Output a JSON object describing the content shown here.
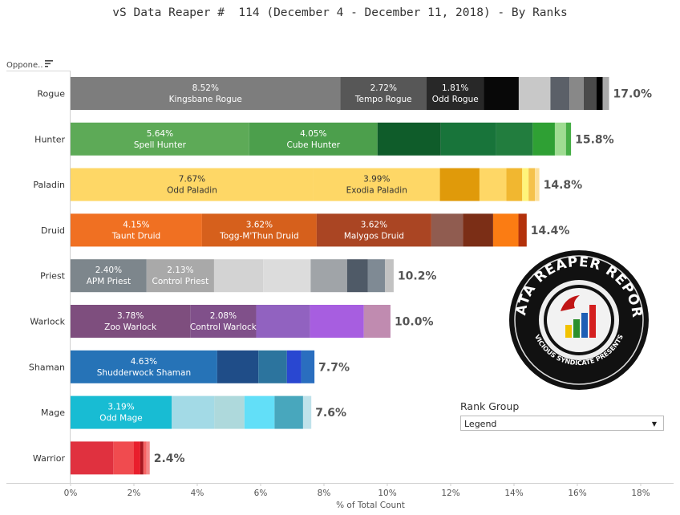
{
  "title": "vS Data Reaper #  114 (December 4 - December 11, 2018) - By Ranks",
  "opponent_header": "Oppone..",
  "rank_group": {
    "title": "Rank Group",
    "selected": "Legend"
  },
  "logo": {
    "text_top": "DATA REAPER REPORT",
    "text_bottom": "VICIOUS SYNDICATE PRESENTS"
  },
  "chart_data": {
    "type": "bar",
    "orientation": "horizontal-stacked",
    "xlabel": "% of Total Count",
    "xlim": [
      0,
      18
    ],
    "xticks": [
      "0%",
      "2%",
      "4%",
      "6%",
      "8%",
      "10%",
      "12%",
      "14%",
      "16%",
      "18%"
    ],
    "grid": false,
    "categories": [
      {
        "class": "Rogue",
        "total": "17.0%",
        "segments": [
          {
            "value": 8.52,
            "label": "8.52%",
            "name": "Kingsbane Rogue",
            "color": "#7d7d7d"
          },
          {
            "value": 2.72,
            "label": "2.72%",
            "name": "Tempo Rogue",
            "color": "#575757"
          },
          {
            "value": 1.81,
            "label": "1.81%",
            "name": "Odd Rogue",
            "color": "#282828"
          },
          {
            "value": 1.1,
            "color": "#080808"
          },
          {
            "value": 1.0,
            "color": "#c8c8c8"
          },
          {
            "value": 0.6,
            "color": "#5b6068"
          },
          {
            "value": 0.45,
            "color": "#888888"
          },
          {
            "value": 0.4,
            "color": "#4a4a4a"
          },
          {
            "value": 0.2,
            "color": "#000000"
          },
          {
            "value": 0.2,
            "color": "#a9a9a9"
          }
        ]
      },
      {
        "class": "Hunter",
        "total": "15.8%",
        "segments": [
          {
            "value": 5.64,
            "label": "5.64%",
            "name": "Spell Hunter",
            "color": "#5daa57"
          },
          {
            "value": 4.05,
            "label": "4.05%",
            "name": "Cube Hunter",
            "color": "#4c9f4c"
          },
          {
            "value": 2.0,
            "color": "#0f5c2a"
          },
          {
            "value": 1.75,
            "color": "#18743a"
          },
          {
            "value": 1.15,
            "color": "#227d3e"
          },
          {
            "value": 0.7,
            "color": "#2fa034"
          },
          {
            "value": 0.35,
            "color": "#9fdc92"
          },
          {
            "value": 0.16,
            "color": "#46ae46"
          }
        ]
      },
      {
        "class": "Paladin",
        "total": "14.8%",
        "segments": [
          {
            "value": 7.67,
            "label": "7.67%",
            "name": "Odd Paladin",
            "color": "#fed766"
          },
          {
            "value": 3.99,
            "label": "3.99%",
            "name": "Exodia Paladin",
            "color": "#fed766"
          },
          {
            "value": 1.25,
            "color": "#e09a0a"
          },
          {
            "value": 0.85,
            "color": "#fed766"
          },
          {
            "value": 0.5,
            "color": "#f1b730"
          },
          {
            "value": 0.2,
            "color": "#fff47a"
          },
          {
            "value": 0.2,
            "color": "#f5c24c"
          },
          {
            "value": 0.14,
            "color": "#fde09b"
          }
        ]
      },
      {
        "class": "Druid",
        "total": "14.4%",
        "segments": [
          {
            "value": 4.15,
            "label": "4.15%",
            "name": "Taunt Druid",
            "color": "#f07022"
          },
          {
            "value": 3.62,
            "label": "3.62%",
            "name": "Togg-M'Thun Druid",
            "color": "#d6601c"
          },
          {
            "value": 3.62,
            "label": "3.62%",
            "name": "Malygos Druid",
            "color": "#aa4523"
          },
          {
            "value": 1.0,
            "color": "#905c50"
          },
          {
            "value": 0.95,
            "color": "#7b2e16"
          },
          {
            "value": 0.8,
            "color": "#fb7c13"
          },
          {
            "value": 0.26,
            "color": "#b3310b"
          }
        ]
      },
      {
        "class": "Priest",
        "total": "10.2%",
        "segments": [
          {
            "value": 2.4,
            "label": "2.40%",
            "name": "APM Priest",
            "color": "#7d868c"
          },
          {
            "value": 2.13,
            "label": "2.13%",
            "name": "Control Priest",
            "color": "#a9a9a9"
          },
          {
            "value": 1.55,
            "color": "#d3d3d3"
          },
          {
            "value": 1.5,
            "color": "#dcdcdc"
          },
          {
            "value": 1.15,
            "color": "#a0a4a8"
          },
          {
            "value": 0.65,
            "color": "#4f5a67"
          },
          {
            "value": 0.55,
            "color": "#7f8a94"
          },
          {
            "value": 0.27,
            "color": "#c2c2c2"
          }
        ]
      },
      {
        "class": "Warlock",
        "total": "10.0%",
        "segments": [
          {
            "value": 3.78,
            "label": "3.78%",
            "name": "Zoo Warlock",
            "color": "#7e4e7e"
          },
          {
            "value": 2.08,
            "label": "2.08%",
            "name": "Control Warlock",
            "color": "#80508a"
          },
          {
            "value": 1.7,
            "color": "#9162c0"
          },
          {
            "value": 1.7,
            "color": "#a75ee0"
          },
          {
            "value": 0.84,
            "color": "#c08bb0"
          }
        ]
      },
      {
        "class": "Shaman",
        "total": "7.7%",
        "segments": [
          {
            "value": 4.63,
            "label": "4.63%",
            "name": "Shudderwock Shaman",
            "color": "#2673b7"
          },
          {
            "value": 1.3,
            "color": "#1f4d88"
          },
          {
            "value": 0.9,
            "color": "#2c749e"
          },
          {
            "value": 0.45,
            "color": "#2947d1"
          },
          {
            "value": 0.42,
            "color": "#2a6ebf"
          }
        ]
      },
      {
        "class": "Mage",
        "total": "7.6%",
        "segments": [
          {
            "value": 3.19,
            "label": "3.19%",
            "name": "Odd Mage",
            "color": "#18bcd3"
          },
          {
            "value": 1.35,
            "color": "#a3dae6"
          },
          {
            "value": 0.95,
            "color": "#aed9dc"
          },
          {
            "value": 0.95,
            "color": "#62dff8"
          },
          {
            "value": 0.9,
            "color": "#48a7bd"
          },
          {
            "value": 0.26,
            "color": "#bfe2ea"
          }
        ]
      },
      {
        "class": "Warrior",
        "total": "2.4%",
        "segments": [
          {
            "value": 1.35,
            "color": "#e0313f"
          },
          {
            "value": 0.65,
            "color": "#f04b4f"
          },
          {
            "value": 0.2,
            "color": "#e91e2c"
          },
          {
            "value": 0.1,
            "color": "#a81820"
          },
          {
            "value": 0.1,
            "color": "#f56565"
          },
          {
            "value": 0.1,
            "color": "#f38a8a"
          }
        ]
      }
    ]
  }
}
